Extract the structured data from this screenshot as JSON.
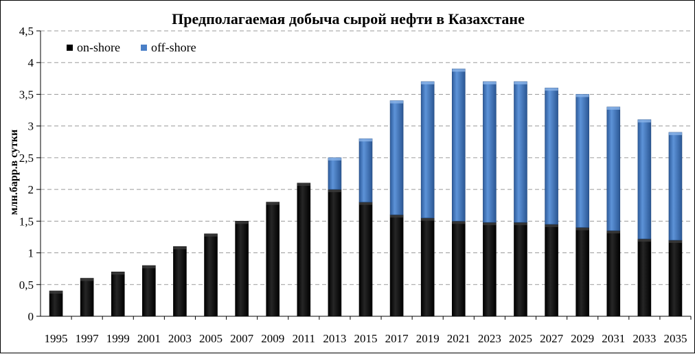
{
  "chart_data": {
    "type": "bar",
    "stacked": true,
    "title": "Предполагаемая добыча сырой нефти в Казахстане",
    "xlabel": "",
    "ylabel": "млн.барр.в сутки",
    "ylim": [
      0,
      4.5
    ],
    "yticks": [
      "0",
      "0,5",
      "1",
      "1,5",
      "2",
      "2,5",
      "3",
      "3,5",
      "4",
      "4,5"
    ],
    "grid": "horizontal-dashed",
    "legend_position": "top-left",
    "categories": [
      "1995",
      "1997",
      "1999",
      "2001",
      "2003",
      "2005",
      "2007",
      "2009",
      "2011",
      "2013",
      "2015",
      "2017",
      "2019",
      "2021",
      "2023",
      "2025",
      "2027",
      "2029",
      "2031",
      "2033",
      "2035"
    ],
    "series": [
      {
        "name": "on-shore",
        "color": "#000000",
        "values": [
          0.4,
          0.6,
          0.7,
          0.8,
          1.1,
          1.3,
          1.5,
          1.8,
          2.1,
          2.0,
          1.8,
          1.6,
          1.55,
          1.5,
          1.48,
          1.48,
          1.45,
          1.4,
          1.35,
          1.22,
          1.2
        ]
      },
      {
        "name": "off-shore",
        "color": "#4a7fc7",
        "values": [
          0,
          0,
          0,
          0,
          0,
          0,
          0,
          0,
          0,
          0.5,
          1.0,
          1.8,
          2.15,
          2.4,
          2.22,
          2.22,
          2.15,
          2.1,
          1.95,
          1.88,
          1.7
        ]
      }
    ]
  }
}
